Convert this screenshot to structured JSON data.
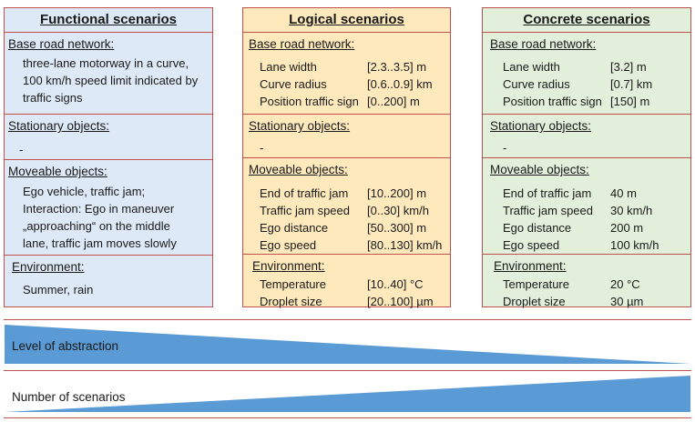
{
  "functional": {
    "title": "Functional scenarios",
    "road_title": "Base road network:",
    "road_lines": [
      "three-lane motorway in a curve,",
      "100 km/h speed limit indicated by",
      "traffic signs"
    ],
    "stationary_title": "Stationary objects:",
    "stationary_value": "-",
    "moveable_title": "Moveable objects:",
    "moveable_lines": [
      "Ego vehicle, traffic jam;",
      "Interaction: Ego in maneuver",
      "„approaching“ on the middle",
      "lane, traffic jam moves slowly"
    ],
    "env_title": "Environment:",
    "env_value": "Summer, rain"
  },
  "logical": {
    "title": "Logical scenarios",
    "road_title": "Base road network:",
    "road": [
      {
        "k": "Lane width",
        "v": "[2.3..3.5] m"
      },
      {
        "k": "Curve radius",
        "v": "[0.6..0.9] km"
      },
      {
        "k": "Position traffic sign",
        "v": "[0..200] m"
      }
    ],
    "stationary_title": "Stationary objects:",
    "stationary_value": "-",
    "moveable_title": "Moveable objects:",
    "moveable": [
      {
        "k": "End of traffic jam",
        "v": "[10..200] m"
      },
      {
        "k": "Traffic jam speed",
        "v": "[0..30] km/h"
      },
      {
        "k": "Ego distance",
        "v": "[50..300] m"
      },
      {
        "k": "Ego speed",
        "v": "[80..130] km/h"
      }
    ],
    "env_title": "Environment:",
    "env": [
      {
        "k": "Temperature",
        "v": "[10..40] °C"
      },
      {
        "k": "Droplet size",
        "v": "[20..100] µm"
      }
    ]
  },
  "concrete": {
    "title": "Concrete scenarios",
    "road_title": "Base road network:",
    "road": [
      {
        "k": "Lane width",
        "v": "[3.2] m"
      },
      {
        "k": "Curve radius",
        "v": "[0.7] km"
      },
      {
        "k": "Position traffic sign",
        "v": "[150] m"
      }
    ],
    "stationary_title": "Stationary objects:",
    "stationary_value": "-",
    "moveable_title": "Moveable objects:",
    "moveable": [
      {
        "k": "End of traffic jam",
        "v": "40 m"
      },
      {
        "k": "Traffic jam speed",
        "v": "30 km/h"
      },
      {
        "k": "Ego distance",
        "v": "200 m"
      },
      {
        "k": "Ego speed",
        "v": "100 km/h"
      }
    ],
    "env_title": "Environment:",
    "env": [
      {
        "k": "Temperature",
        "v": "20 °C"
      },
      {
        "k": "Droplet size",
        "v": "30 µm"
      }
    ]
  },
  "abstraction_label": "Level of abstraction",
  "scenarios_label": "Number of scenarios",
  "colors": {
    "border": "#c0504d",
    "triangle": "#5b9bd5"
  }
}
